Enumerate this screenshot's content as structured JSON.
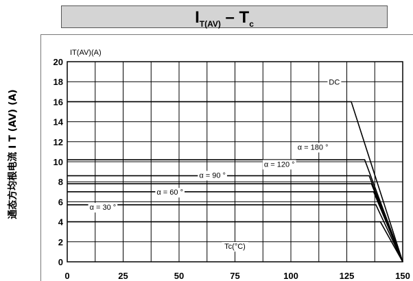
{
  "header": {
    "title_main": "I",
    "title_sub": "T(AV)",
    "title_rest": " – T",
    "title_sub2": "c"
  },
  "side_label": "通态方均根电流 I T (AV) (A)",
  "chart_data": {
    "type": "line",
    "title": "IT(AV) – Tc",
    "ylabel": "IT(AV)(A)",
    "xlabel": "Tc(°C)",
    "xlim": [
      0,
      150
    ],
    "ylim": [
      0,
      20
    ],
    "x_ticks": [
      0,
      25,
      50,
      75,
      100,
      125,
      150
    ],
    "y_ticks": [
      0,
      2,
      4,
      6,
      8,
      10,
      12,
      14,
      16,
      18,
      20
    ],
    "grid": true,
    "series": [
      {
        "name": "DC",
        "points": [
          [
            0,
            16
          ],
          [
            127,
            16
          ],
          [
            150,
            0
          ]
        ]
      },
      {
        "name": "α = 180 °",
        "points": [
          [
            0,
            10.2
          ],
          [
            133,
            10.2
          ],
          [
            150,
            0
          ]
        ]
      },
      {
        "name": "α = 120 °",
        "points": [
          [
            0,
            8.6
          ],
          [
            135,
            8.6
          ],
          [
            150,
            0
          ]
        ]
      },
      {
        "name": "α = 90 °",
        "points": [
          [
            0,
            7.8
          ],
          [
            136,
            7.8
          ],
          [
            150,
            0
          ]
        ]
      },
      {
        "name": "α = 60 °",
        "points": [
          [
            0,
            7.0
          ],
          [
            137,
            7.0
          ],
          [
            150,
            0
          ]
        ]
      },
      {
        "name": "α = 30 °",
        "points": [
          [
            0,
            5.7
          ],
          [
            138,
            5.7
          ],
          [
            150,
            0
          ]
        ]
      },
      {
        "name": "",
        "points": [
          [
            0,
            4.0
          ],
          [
            140,
            4.0
          ],
          [
            150,
            0
          ]
        ]
      }
    ],
    "annotations": [
      {
        "text": "DC",
        "x": 117,
        "y": 17.7
      },
      {
        "text": "α = 180 °",
        "x": 103,
        "y": 11.2
      },
      {
        "text": "α = 120 °",
        "x": 88,
        "y": 9.5
      },
      {
        "text": "α = 90 °",
        "x": 59,
        "y": 8.4
      },
      {
        "text": "α = 60 °",
        "x": 40,
        "y": 6.7
      },
      {
        "text": "α = 30 °",
        "x": 10,
        "y": 5.2
      }
    ]
  }
}
